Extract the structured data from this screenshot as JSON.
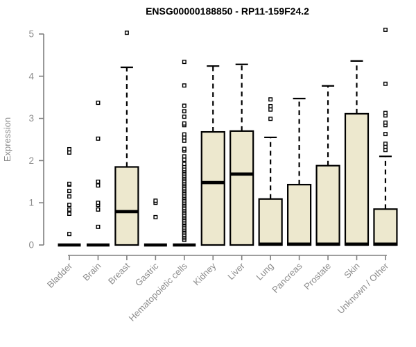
{
  "colors": {
    "background": "#ffffff",
    "box_fill": "#EDE8CE",
    "box_stroke": "#000000",
    "median": "#000000",
    "whisker": "#000000",
    "outlier_stroke": "#000000",
    "outlier_fill": "#ffffff",
    "axis_line": "#7f7f7f",
    "axis_text": "#8c8c8c",
    "title_text": "#000000"
  },
  "chart_data": {
    "type": "boxplot",
    "title": "ENSG00000188850 - RP11-159F24.2",
    "xlabel": "",
    "ylabel": "Expression",
    "ylim": [
      0,
      5.15
    ],
    "yticks": [
      0,
      1,
      2,
      3,
      4,
      5
    ],
    "grid": false,
    "legend": "none",
    "categories": [
      "Bladder",
      "Brain",
      "Breast",
      "Gastric",
      "Hematopoietic cells",
      "Kidney",
      "Liver",
      "Lung",
      "Pancreas",
      "Prostate",
      "Skin",
      "Unknown / Other"
    ],
    "boxes": [
      {
        "category": "Bladder",
        "q1": 0,
        "median": 0,
        "q3": 0,
        "whisker_low": 0,
        "whisker_high": 0,
        "outliers": [
          0.26,
          0.74,
          0.84,
          0.95,
          1.15,
          1.28,
          1.43,
          1.45,
          2.19,
          2.27
        ]
      },
      {
        "category": "Brain",
        "q1": 0,
        "median": 0,
        "q3": 0,
        "whisker_low": 0,
        "whisker_high": 0,
        "outliers": [
          0.43,
          0.84,
          0.95,
          1.0,
          1.41,
          1.5,
          2.52,
          3.37
        ]
      },
      {
        "category": "Breast",
        "q1": 0,
        "median": 0.79,
        "q3": 1.85,
        "whisker_low": 0,
        "whisker_high": 4.21,
        "outliers": [
          5.03
        ]
      },
      {
        "category": "Gastric",
        "q1": 0,
        "median": 0,
        "q3": 0,
        "whisker_low": 0,
        "whisker_high": 0,
        "outliers": [
          0.66,
          1.0,
          1.05
        ]
      },
      {
        "category": "Hematopoietic cells",
        "q1": 0,
        "median": 0,
        "q3": 0,
        "whisker_low": 0,
        "whisker_high": 0,
        "outliers": [
          0.12,
          0.16,
          0.2,
          0.24,
          0.28,
          0.32,
          0.36,
          0.4,
          0.44,
          0.48,
          0.52,
          0.56,
          0.6,
          0.64,
          0.68,
          0.72,
          0.76,
          0.8,
          0.84,
          0.88,
          0.92,
          0.96,
          1.0,
          1.04,
          1.08,
          1.12,
          1.16,
          1.2,
          1.24,
          1.28,
          1.32,
          1.36,
          1.4,
          1.44,
          1.48,
          1.52,
          1.56,
          1.6,
          1.64,
          1.68,
          1.72,
          1.76,
          1.8,
          1.86,
          1.92,
          2.02,
          2.1,
          2.24,
          2.28,
          2.47,
          2.55,
          2.62,
          2.84,
          2.88,
          3.04,
          3.17,
          3.3,
          3.78,
          4.34
        ]
      },
      {
        "category": "Kidney",
        "q1": 0,
        "median": 1.48,
        "q3": 2.68,
        "whisker_low": 0,
        "whisker_high": 4.24,
        "outliers": []
      },
      {
        "category": "Liver",
        "q1": 0,
        "median": 1.68,
        "q3": 2.7,
        "whisker_low": 0,
        "whisker_high": 4.28,
        "outliers": []
      },
      {
        "category": "Lung",
        "q1": 0,
        "median": 0.02,
        "q3": 1.09,
        "whisker_low": 0,
        "whisker_high": 2.55,
        "outliers": [
          2.99,
          3.21,
          3.29,
          3.45
        ]
      },
      {
        "category": "Pancreas",
        "q1": 0,
        "median": 0.02,
        "q3": 1.43,
        "whisker_low": 0,
        "whisker_high": 3.47,
        "outliers": []
      },
      {
        "category": "Prostate",
        "q1": 0,
        "median": 0.02,
        "q3": 1.88,
        "whisker_low": 0,
        "whisker_high": 3.77,
        "outliers": []
      },
      {
        "category": "Skin",
        "q1": 0,
        "median": 0.02,
        "q3": 3.11,
        "whisker_low": 0,
        "whisker_high": 4.36,
        "outliers": []
      },
      {
        "category": "Unknown / Other",
        "q1": 0,
        "median": 0.02,
        "q3": 0.85,
        "whisker_low": 0,
        "whisker_high": 2.1,
        "outliers": [
          2.25,
          2.33,
          2.4,
          2.63,
          2.84,
          2.9,
          3.07,
          3.13,
          3.82,
          5.1
        ]
      }
    ]
  }
}
